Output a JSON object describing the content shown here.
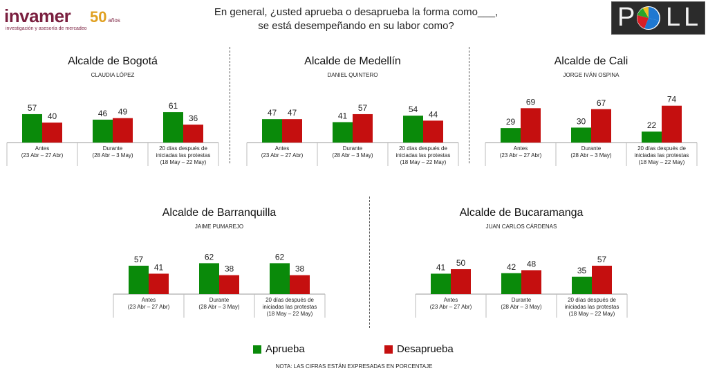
{
  "header": {
    "brand_name": "invamer",
    "brand_years": "50",
    "brand_years_suffix": "años",
    "brand_tagline": "investigación y asesoría de mercadeo",
    "question_line1": "En general, ¿usted aprueba o desaprueba la forma como___,",
    "question_line2": "se está desempeñando en su labor como?",
    "badge_text": "POLL"
  },
  "colors": {
    "aprueba": "#0a8a0a",
    "desaprueba": "#c50f0f"
  },
  "legend": {
    "aprueba_label": "Aprueba",
    "desaprueba_label": "Desaprueba"
  },
  "note": "NOTA: LAS CIFRAS ESTÁN EXPRESADAS EN PORCENTAJE",
  "chart_data": [
    {
      "type": "bar",
      "title": "Alcalde de Bogotá",
      "subtitle": "CLAUDIA LÓPEZ",
      "categories": [
        "Antes\n(23 Abr – 27 Abr)",
        "Durante\n(28 Abr – 3 May)",
        "20 días después de\niniciadas las protestas\n(18 May – 22 May)"
      ],
      "series": [
        {
          "name": "Aprueba",
          "values": [
            57,
            46,
            61
          ]
        },
        {
          "name": "Desaprueba",
          "values": [
            40,
            49,
            36
          ]
        }
      ]
    },
    {
      "type": "bar",
      "title": "Alcalde de Medellín",
      "subtitle": "DANIEL QUINTERO",
      "categories": [
        "Antes\n(23 Abr – 27 Abr)",
        "Durante\n(28 Abr – 3 May)",
        "20 días después de\niniciadas las protestas\n(18 May – 22 May)"
      ],
      "series": [
        {
          "name": "Aprueba",
          "values": [
            47,
            41,
            54
          ]
        },
        {
          "name": "Desaprueba",
          "values": [
            47,
            57,
            44
          ]
        }
      ]
    },
    {
      "type": "bar",
      "title": "Alcalde de Cali",
      "subtitle": "JORGE IVÁN OSPINA",
      "categories": [
        "Antes\n(23 Abr – 27 Abr)",
        "Durante\n(28 Abr – 3 May)",
        "20 días después de\niniciadas las protestas\n(18 May – 22 May)"
      ],
      "series": [
        {
          "name": "Aprueba",
          "values": [
            29,
            30,
            22
          ]
        },
        {
          "name": "Desaprueba",
          "values": [
            69,
            67,
            74
          ]
        }
      ]
    },
    {
      "type": "bar",
      "title": "Alcalde de Barranquilla",
      "subtitle": "JAIME PUMAREJO",
      "categories": [
        "Antes\n(23 Abr – 27 Abr)",
        "Durante\n(28 Abr – 3 May)",
        "20 días después de\niniciadas las protestas\n(18 May – 22 May)"
      ],
      "series": [
        {
          "name": "Aprueba",
          "values": [
            57,
            62,
            62
          ]
        },
        {
          "name": "Desaprueba",
          "values": [
            41,
            38,
            38
          ]
        }
      ]
    },
    {
      "type": "bar",
      "title": "Alcalde de Bucaramanga",
      "subtitle": "JUAN CARLOS CÁRDENAS",
      "categories": [
        "Antes\n(23 Abr – 27 Abr)",
        "Durante\n(28 Abr – 3 May)",
        "20 días después de\niniciadas las protestas\n(18 May – 22 May)"
      ],
      "series": [
        {
          "name": "Aprueba",
          "values": [
            41,
            42,
            35
          ]
        },
        {
          "name": "Desaprueba",
          "values": [
            50,
            48,
            57
          ]
        }
      ]
    }
  ]
}
